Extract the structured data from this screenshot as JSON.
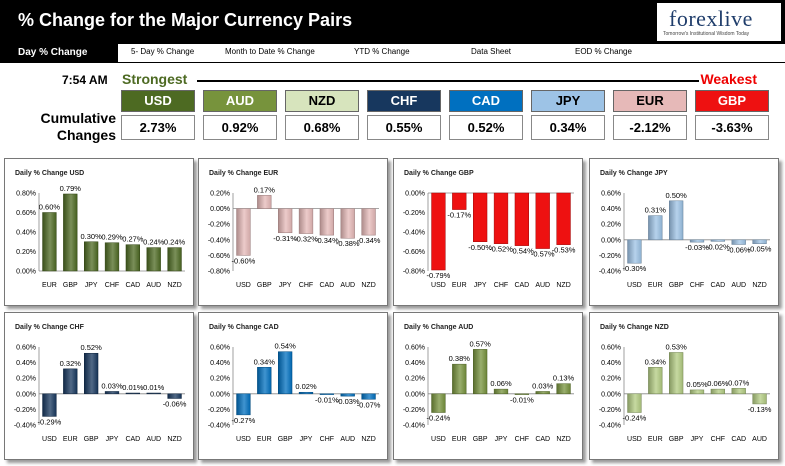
{
  "header": {
    "title": "% Change for the Major Currency Pairs",
    "logo": "forexlive",
    "logo_sub": "Tomorrow's Institutional Wisdom Today"
  },
  "tabs": [
    {
      "label": "Day % Change",
      "active": true
    },
    {
      "label": "5- Day % Change"
    },
    {
      "label": "Month to Date % Change"
    },
    {
      "label": "YTD % Change"
    },
    {
      "label": "Data Sheet"
    },
    {
      "label": "EOD % Change"
    }
  ],
  "summary": {
    "time": "7:54 AM",
    "strongest": "Strongest",
    "weakest": "Weakest",
    "cumulative_label": "Cumulative Changes",
    "currencies": [
      {
        "name": "USD",
        "value": "2.73%",
        "color": "#4d6a22",
        "text": "#ffffff"
      },
      {
        "name": "AUD",
        "value": "0.92%",
        "color": "#77933c",
        "text": "#ffffff"
      },
      {
        "name": "NZD",
        "value": "0.68%",
        "color": "#d7e4bd",
        "text": "#000000"
      },
      {
        "name": "CHF",
        "value": "0.55%",
        "color": "#17375e",
        "text": "#ffffff"
      },
      {
        "name": "CAD",
        "value": "0.52%",
        "color": "#0070c0",
        "text": "#ffffff"
      },
      {
        "name": "JPY",
        "value": "0.34%",
        "color": "#9dc3e6",
        "text": "#000000"
      },
      {
        "name": "EUR",
        "value": "-2.12%",
        "color": "#e6b9b8",
        "text": "#000000"
      },
      {
        "name": "GBP",
        "value": "-3.63%",
        "color": "#ee1111",
        "text": "#ffffff"
      }
    ]
  },
  "chart_data": [
    {
      "type": "bar",
      "title": "Daily % Change USD",
      "categories": [
        "EUR",
        "GBP",
        "JPY",
        "CHF",
        "CAD",
        "AUD",
        "NZD"
      ],
      "values": [
        0.6,
        0.79,
        0.3,
        0.29,
        0.27,
        0.24,
        0.24
      ],
      "labels": [
        "0.60%",
        "0.79%",
        "0.30%",
        "0.29%",
        "0.27%",
        "0.24%",
        "0.24%"
      ],
      "ylim": [
        0,
        0.8
      ],
      "ticks": [
        "0.00%",
        "0.20%",
        "0.40%",
        "0.60%",
        "0.80%"
      ],
      "color": "#4d6a22",
      "gradient": true
    },
    {
      "type": "bar",
      "title": "Daily % Change EUR",
      "categories": [
        "USD",
        "GBP",
        "JPY",
        "CHF",
        "CAD",
        "AUD",
        "NZD"
      ],
      "values": [
        -0.6,
        0.17,
        -0.31,
        -0.32,
        -0.34,
        -0.38,
        -0.34
      ],
      "labels": [
        "-0.60%",
        "0.17%",
        "-0.31%",
        "-0.32%",
        "-0.34%",
        "-0.38%",
        "-0.34%"
      ],
      "ylim": [
        -0.8,
        0.2
      ],
      "ticks": [
        "-0.80%",
        "-0.60%",
        "-0.40%",
        "-0.20%",
        "0.00%",
        "0.20%"
      ],
      "color": "#e6b9b8",
      "gradient": true
    },
    {
      "type": "bar",
      "title": "Daily % Change GBP",
      "categories": [
        "USD",
        "EUR",
        "JPY",
        "CHF",
        "CAD",
        "AUD",
        "NZD"
      ],
      "values": [
        -0.79,
        -0.17,
        -0.5,
        -0.52,
        -0.54,
        -0.57,
        -0.53
      ],
      "labels": [
        "-0.79%",
        "-0.17%",
        "-0.50%",
        "-0.52%",
        "-0.54%",
        "-0.57%",
        "-0.53%"
      ],
      "ylim": [
        -0.8,
        0.0
      ],
      "ticks": [
        "-0.80%",
        "-0.60%",
        "-0.40%",
        "-0.20%",
        "0.00%"
      ],
      "color": "#ee1111",
      "gradient": false
    },
    {
      "type": "bar",
      "title": "Daily % Change JPY",
      "categories": [
        "USD",
        "EUR",
        "GBP",
        "CHF",
        "CAD",
        "AUD",
        "NZD"
      ],
      "values": [
        -0.3,
        0.31,
        0.5,
        -0.03,
        -0.02,
        -0.06,
        -0.05
      ],
      "labels": [
        "-0.30%",
        "0.31%",
        "0.50%",
        "-0.03%",
        "-0.02%",
        "-0.06%",
        "-0.05%"
      ],
      "ylim": [
        -0.4,
        0.6
      ],
      "ticks": [
        "-0.40%",
        "-0.20%",
        "0.00%",
        "0.20%",
        "0.40%",
        "0.60%"
      ],
      "color": "#9dc3e6",
      "gradient": true
    },
    {
      "type": "bar",
      "title": "Daily % Change CHF",
      "categories": [
        "USD",
        "EUR",
        "GBP",
        "JPY",
        "CAD",
        "AUD",
        "NZD"
      ],
      "values": [
        -0.29,
        0.32,
        0.52,
        0.03,
        0.01,
        0.01,
        -0.06
      ],
      "labels": [
        "-0.29%",
        "0.32%",
        "0.52%",
        "0.03%",
        "0.01%",
        "0.01%",
        "-0.06%"
      ],
      "ylim": [
        -0.4,
        0.6
      ],
      "ticks": [
        "-0.40%",
        "-0.20%",
        "0.00%",
        "0.20%",
        "0.40%",
        "0.60%"
      ],
      "color": "#17375e",
      "gradient": true
    },
    {
      "type": "bar",
      "title": "Daily % Change CAD",
      "categories": [
        "USD",
        "EUR",
        "GBP",
        "JPY",
        "CHF",
        "AUD",
        "NZD"
      ],
      "values": [
        -0.27,
        0.34,
        0.54,
        0.02,
        -0.01,
        -0.03,
        -0.07
      ],
      "labels": [
        "-0.27%",
        "0.34%",
        "0.54%",
        "0.02%",
        "-0.01%",
        "-0.03%",
        "-0.07%"
      ],
      "ylim": [
        -0.4,
        0.6
      ],
      "ticks": [
        "-0.40%",
        "-0.20%",
        "0.00%",
        "0.20%",
        "0.40%",
        "0.60%"
      ],
      "color": "#0070c0",
      "gradient": true
    },
    {
      "type": "bar",
      "title": "Daily % Change AUD",
      "categories": [
        "USD",
        "EUR",
        "GBP",
        "JPY",
        "CHF",
        "CAD",
        "NZD"
      ],
      "values": [
        -0.24,
        0.38,
        0.57,
        0.06,
        -0.01,
        0.03,
        0.13
      ],
      "labels": [
        "-0.24%",
        "0.38%",
        "0.57%",
        "0.06%",
        "-0.01%",
        "0.03%",
        "0.13%"
      ],
      "ylim": [
        -0.4,
        0.6
      ],
      "ticks": [
        "-0.40%",
        "-0.20%",
        "0.00%",
        "0.20%",
        "0.40%",
        "0.60%"
      ],
      "color": "#77933c",
      "gradient": true
    },
    {
      "type": "bar",
      "title": "Daily % Change NZD",
      "categories": [
        "USD",
        "EUR",
        "GBP",
        "JPY",
        "CHF",
        "CAD",
        "AUD"
      ],
      "values": [
        -0.24,
        0.34,
        0.53,
        0.05,
        0.06,
        0.07,
        -0.13
      ],
      "labels": [
        "-0.24%",
        "0.34%",
        "0.53%",
        "0.05%",
        "0.06%",
        "0.07%",
        "-0.13%"
      ],
      "ylim": [
        -0.4,
        0.6
      ],
      "ticks": [
        "-0.40%",
        "-0.20%",
        "0.00%",
        "0.20%",
        "0.40%",
        "0.60%"
      ],
      "color": "#b3cc82",
      "gradient": true
    }
  ]
}
